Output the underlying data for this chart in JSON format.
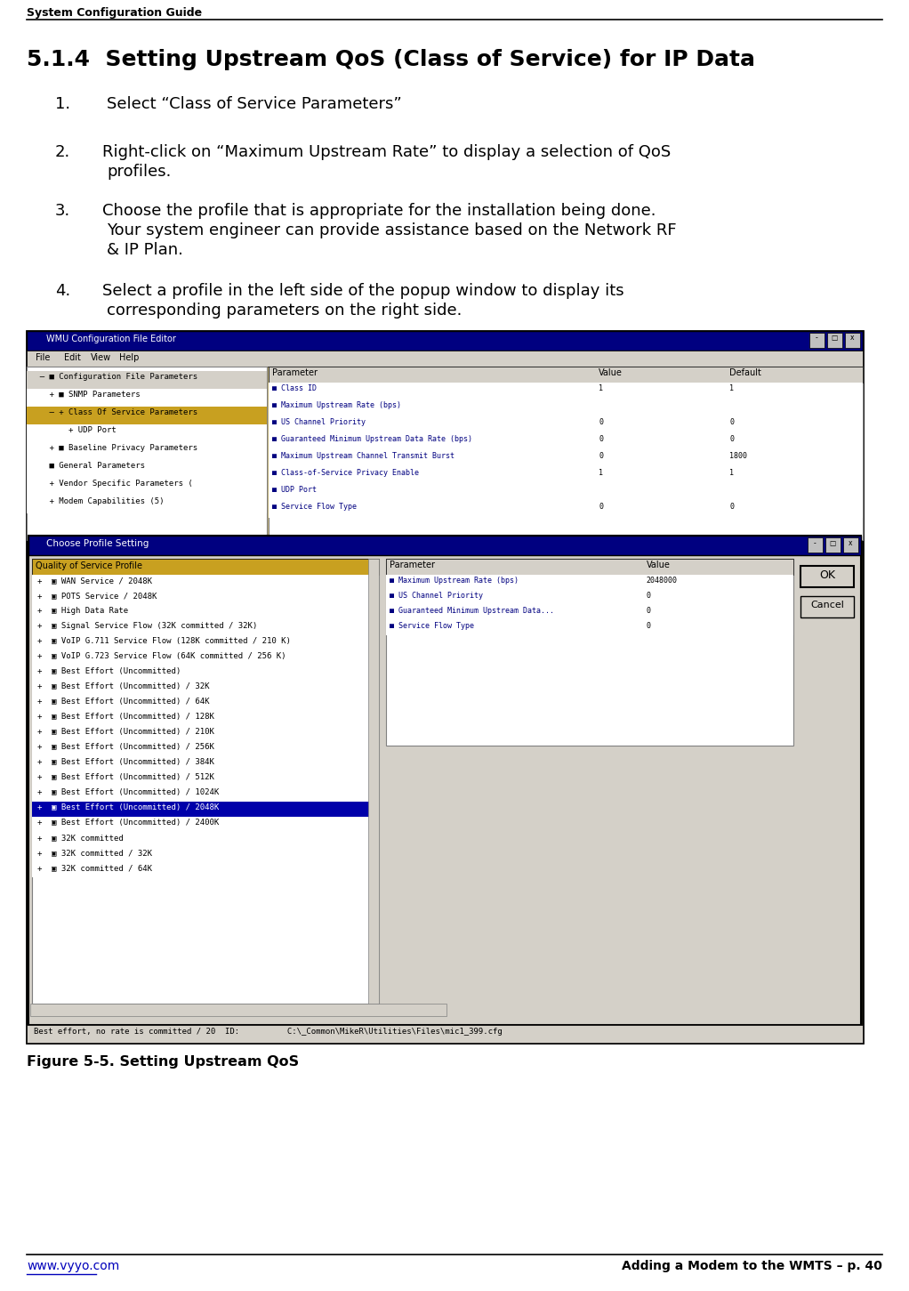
{
  "header_text": "System Configuration Guide",
  "footer_left": "www.vyyo.com",
  "footer_right": "Adding a Modem to the WMTS – p. 40",
  "section_title": "5.1.4  Setting Upstream QoS (Class of Service) for IP Data",
  "step1": "Select “Class of Service Parameters”",
  "step2_line1": "Right-click on “Maximum Upstream Rate” to display a selection of QoS",
  "step2_line2": "profiles.",
  "step3_line1": "Choose the profile that is appropriate for the installation being done.",
  "step3_line2": "Your system engineer can provide assistance based on the Network RF",
  "step3_line3": "& IP Plan.",
  "step4_line1": "Select a profile in the left side of the popup window to display its",
  "step4_line2": "corresponding parameters on the right side.",
  "figure_caption": "Figure 5-5. Setting Upstream QoS",
  "bg_color": "#ffffff",
  "header_color": "#000000",
  "footer_link_color": "#0000bb",
  "win_bg": "#c8b87a",
  "win_title_bg": "#000080",
  "panel_bg": "#ffffff",
  "selected_bg": "#0000aa",
  "tree_header_bg": "#c8a020",
  "status_bar_bg": "#d4d0c8",
  "param_header_bg": "#d4d0c8",
  "tree_items": [
    {
      "indent": 0,
      "label": "  – ■ Configuration File Parameters",
      "bg": "#d4d0c8"
    },
    {
      "indent": 1,
      "label": "    + ■ SNMP Parameters",
      "bg": "#ffffff"
    },
    {
      "indent": 1,
      "label": "    – + Class Of Service Parameters",
      "bg": "#c8a020"
    },
    {
      "indent": 2,
      "label": "        + UDP Port",
      "bg": "#ffffff"
    },
    {
      "indent": 1,
      "label": "    + ■ Baseline Privacy Parameters",
      "bg": "#ffffff"
    },
    {
      "indent": 1,
      "label": "    ■ General Parameters",
      "bg": "#ffffff"
    },
    {
      "indent": 1,
      "label": "    + Vendor Specific Parameters (",
      "bg": "#ffffff"
    },
    {
      "indent": 1,
      "label": "    + Modem Capabilities (5)",
      "bg": "#ffffff"
    }
  ],
  "param_rows": [
    {
      "label": "Class ID",
      "value": "1",
      "default": "1"
    },
    {
      "label": "Maximum Upstream Rate (bps)",
      "value": "",
      "default": ""
    },
    {
      "label": "US Channel Priority",
      "value": "0",
      "default": "0"
    },
    {
      "label": "Guaranteed Minimum Upstream Data Rate (bps)",
      "value": "0",
      "default": "0"
    },
    {
      "label": "Maximum Upstream Channel Transmit Burst",
      "value": "0",
      "default": "1800"
    },
    {
      "label": "Class-of-Service Privacy Enable",
      "value": "1",
      "default": "1"
    },
    {
      "label": "UDP Port",
      "value": "",
      "default": ""
    },
    {
      "label": "Service Flow Type",
      "value": "0",
      "default": "0"
    }
  ],
  "qos_items": [
    {
      "label": "WAN Service / 2048K",
      "selected": false
    },
    {
      "label": "POTS Service / 2048K",
      "selected": false
    },
    {
      "label": "High Data Rate",
      "selected": false
    },
    {
      "label": "Signal Service Flow (32K committed / 32K)",
      "selected": false
    },
    {
      "label": "VoIP G.711 Service Flow (128K committed / 210 K)",
      "selected": false
    },
    {
      "label": "VoIP G.723 Service Flow (64K committed / 256 K)",
      "selected": false
    },
    {
      "label": "Best Effort (Uncommitted)",
      "selected": false
    },
    {
      "label": "Best Effort (Uncommitted) / 32K",
      "selected": false
    },
    {
      "label": "Best Effort (Uncommitted) / 64K",
      "selected": false
    },
    {
      "label": "Best Effort (Uncommitted) / 128K",
      "selected": false
    },
    {
      "label": "Best Effort (Uncommitted) / 210K",
      "selected": false
    },
    {
      "label": "Best Effort (Uncommitted) / 256K",
      "selected": false
    },
    {
      "label": "Best Effort (Uncommitted) / 384K",
      "selected": false
    },
    {
      "label": "Best Effort (Uncommitted) / 512K",
      "selected": false
    },
    {
      "label": "Best Effort (Uncommitted) / 1024K",
      "selected": false
    },
    {
      "label": "Best Effort (Uncommitted) / 2048K",
      "selected": true
    },
    {
      "label": "Best Effort (Uncommitted) / 2400K",
      "selected": false
    },
    {
      "label": "32K committed",
      "selected": false
    },
    {
      "label": "32K committed / 32K",
      "selected": false
    },
    {
      "label": "32K committed / 64K",
      "selected": false
    }
  ],
  "right_params": [
    {
      "label": "Maximum Upstream Rate (bps)",
      "value": "2048000"
    },
    {
      "label": "US Channel Priority",
      "value": "0"
    },
    {
      "label": "Guaranteed Minimum Upstream Data...",
      "value": "0"
    },
    {
      "label": "Service Flow Type",
      "value": "0"
    }
  ],
  "status_text": "Best effort, no rate is committed / 20  ID:          C:\\_Common\\MikeR\\Utilities\\Files\\mic1_399.cfg"
}
